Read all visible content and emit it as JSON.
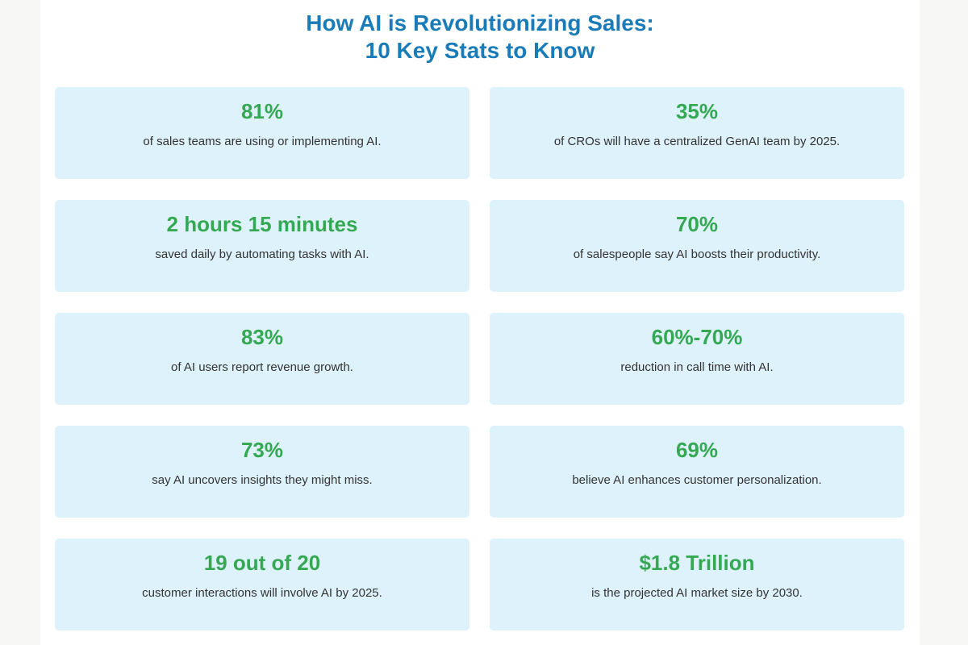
{
  "header": {
    "title_line1": "How AI is Revolutionizing Sales:",
    "title_line2": "10 Key Stats to Know"
  },
  "colors": {
    "title": "#1a7bb9",
    "stat": "#34a853",
    "card_bg": "#def2fb",
    "text": "#333333"
  },
  "stats": [
    {
      "value": "81%",
      "description": "of sales teams are using or implementing AI."
    },
    {
      "value": "35%",
      "description": "of CROs will have a centralized GenAI team by 2025."
    },
    {
      "value": "2 hours 15 minutes",
      "description": "saved daily by automating tasks with AI."
    },
    {
      "value": "70%",
      "description": "of salespeople say AI boosts their productivity."
    },
    {
      "value": "83%",
      "description": "of AI users report revenue growth."
    },
    {
      "value": "60%-70%",
      "description": "reduction in call time with AI."
    },
    {
      "value": "73%",
      "description": "say AI uncovers insights they might miss."
    },
    {
      "value": "69%",
      "description": "believe AI enhances customer personalization."
    },
    {
      "value": "19 out of 20",
      "description": "customer interactions will involve AI by 2025."
    },
    {
      "value": "$1.8 Trillion",
      "description": "is the projected AI market size by 2030."
    }
  ]
}
